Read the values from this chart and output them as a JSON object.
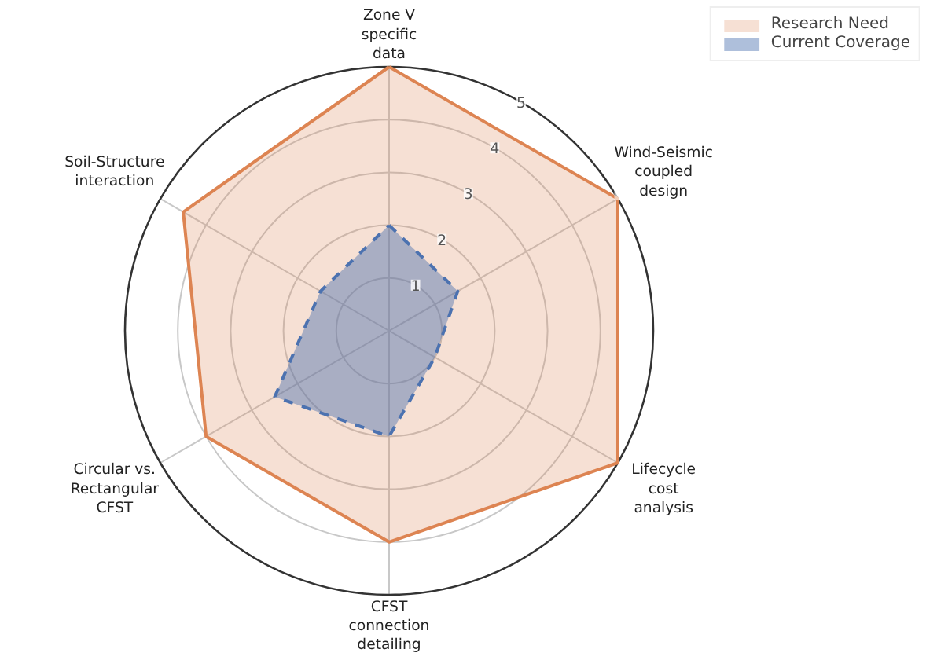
{
  "chart_data": {
    "type": "radar",
    "categories": [
      "Zone V\nspecific\ndata",
      "Wind-Seismic\ncoupled\ndesign",
      "Lifecycle\ncost\nanalysis",
      "CFST\nconnection\ndetailing",
      "Circular vs.\nRectangular\nCFST",
      "Soil-Structure\ninteraction"
    ],
    "series": [
      {
        "name": "Research Need",
        "color": "#dd8452",
        "values": [
          5,
          5,
          5,
          4,
          4,
          4.5
        ],
        "line_style": "solid"
      },
      {
        "name": "Current Coverage",
        "color": "#4c72b0",
        "values": [
          2,
          1.5,
          1,
          2,
          2.5,
          1.5
        ],
        "line_style": "dashed"
      }
    ],
    "ylim": [
      0,
      5
    ],
    "yticks": [
      1,
      2,
      3,
      4,
      5
    ],
    "grid": true,
    "legend": "top right"
  }
}
